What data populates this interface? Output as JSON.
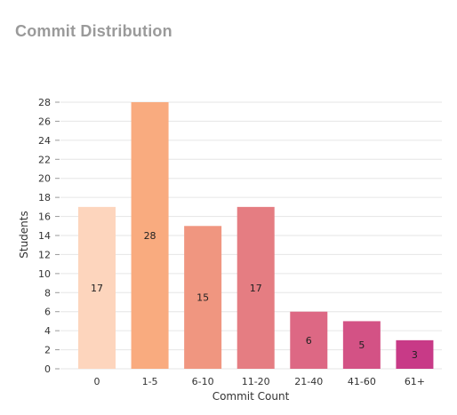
{
  "page": {
    "title": "Commit Distribution"
  },
  "chart_data": {
    "type": "bar",
    "title": "Commit Distribution",
    "xlabel": "Commit Count",
    "ylabel": "Students",
    "categories": [
      "0",
      "1-5",
      "6-10",
      "11-20",
      "21-40",
      "41-60",
      "61+"
    ],
    "values": [
      17,
      28,
      15,
      17,
      6,
      5,
      3
    ],
    "colors": [
      "#fdd5bd",
      "#f9ab7f",
      "#f09680",
      "#e57d82",
      "#dd6884",
      "#d35285",
      "#c83a87"
    ],
    "ylim": [
      0,
      28
    ],
    "yticks": [
      0,
      2,
      4,
      6,
      8,
      10,
      12,
      14,
      16,
      18,
      20,
      22,
      24,
      26,
      28
    ],
    "grid": true,
    "legend": "none"
  }
}
